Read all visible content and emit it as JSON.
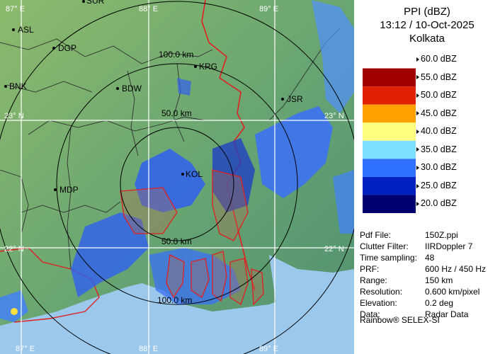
{
  "product": {
    "title": "PPI (dBZ)",
    "timestamp": "13:12 / 10-Oct-2025",
    "station": "Kolkata"
  },
  "legend": {
    "entries": [
      {
        "label": "60.0 dBZ",
        "color": "#ffffff"
      },
      {
        "label": "55.0 dBZ",
        "color": "#a00000"
      },
      {
        "label": "50.0 dBZ",
        "color": "#e02000"
      },
      {
        "label": "45.0 dBZ",
        "color": "#ffa000"
      },
      {
        "label": "40.0 dBZ",
        "color": "#ffff80"
      },
      {
        "label": "35.0 dBZ",
        "color": "#80e0ff"
      },
      {
        "label": "30.0 dBZ",
        "color": "#3070ff"
      },
      {
        "label": "25.0 dBZ",
        "color": "#0020c0"
      },
      {
        "label": "20.0 dBZ",
        "color": "#000070"
      }
    ]
  },
  "info": [
    {
      "key": "Pdf File:",
      "value": "150Z.ppi"
    },
    {
      "key": "Clutter Filter:",
      "value": "IIRDoppler 7"
    },
    {
      "key": "Time sampling:",
      "value": "48"
    },
    {
      "key": "PRF:",
      "value": "600 Hz / 450 Hz"
    },
    {
      "key": "Range:",
      "value": "150 km"
    },
    {
      "key": "Resolution:",
      "value": "0.600 km/pixel"
    },
    {
      "key": "Elevation:",
      "value": "0.2 deg"
    },
    {
      "key": "Data:",
      "value": "Radar Data"
    }
  ],
  "footer": "Rainbow® SELEX-SI",
  "map": {
    "lon_labels": [
      "87° E",
      "88° E",
      "89° E"
    ],
    "lat_labels": [
      "23° N",
      "22° N"
    ],
    "range_labels": [
      "100.0 km",
      "50.0 km",
      "50.0 km",
      "100.0 km"
    ],
    "places": [
      "SUR",
      "ASL",
      "DGP",
      "BNK",
      "BDW",
      "KRG",
      "JSR",
      "MDP",
      "KOL"
    ],
    "colors": {
      "land": "#66a070",
      "sea": "#9cc8ec",
      "border": "#e02020",
      "district": "#303030",
      "grid": "#ffffff",
      "ring": "#000000",
      "echo": "#3060f0"
    }
  }
}
